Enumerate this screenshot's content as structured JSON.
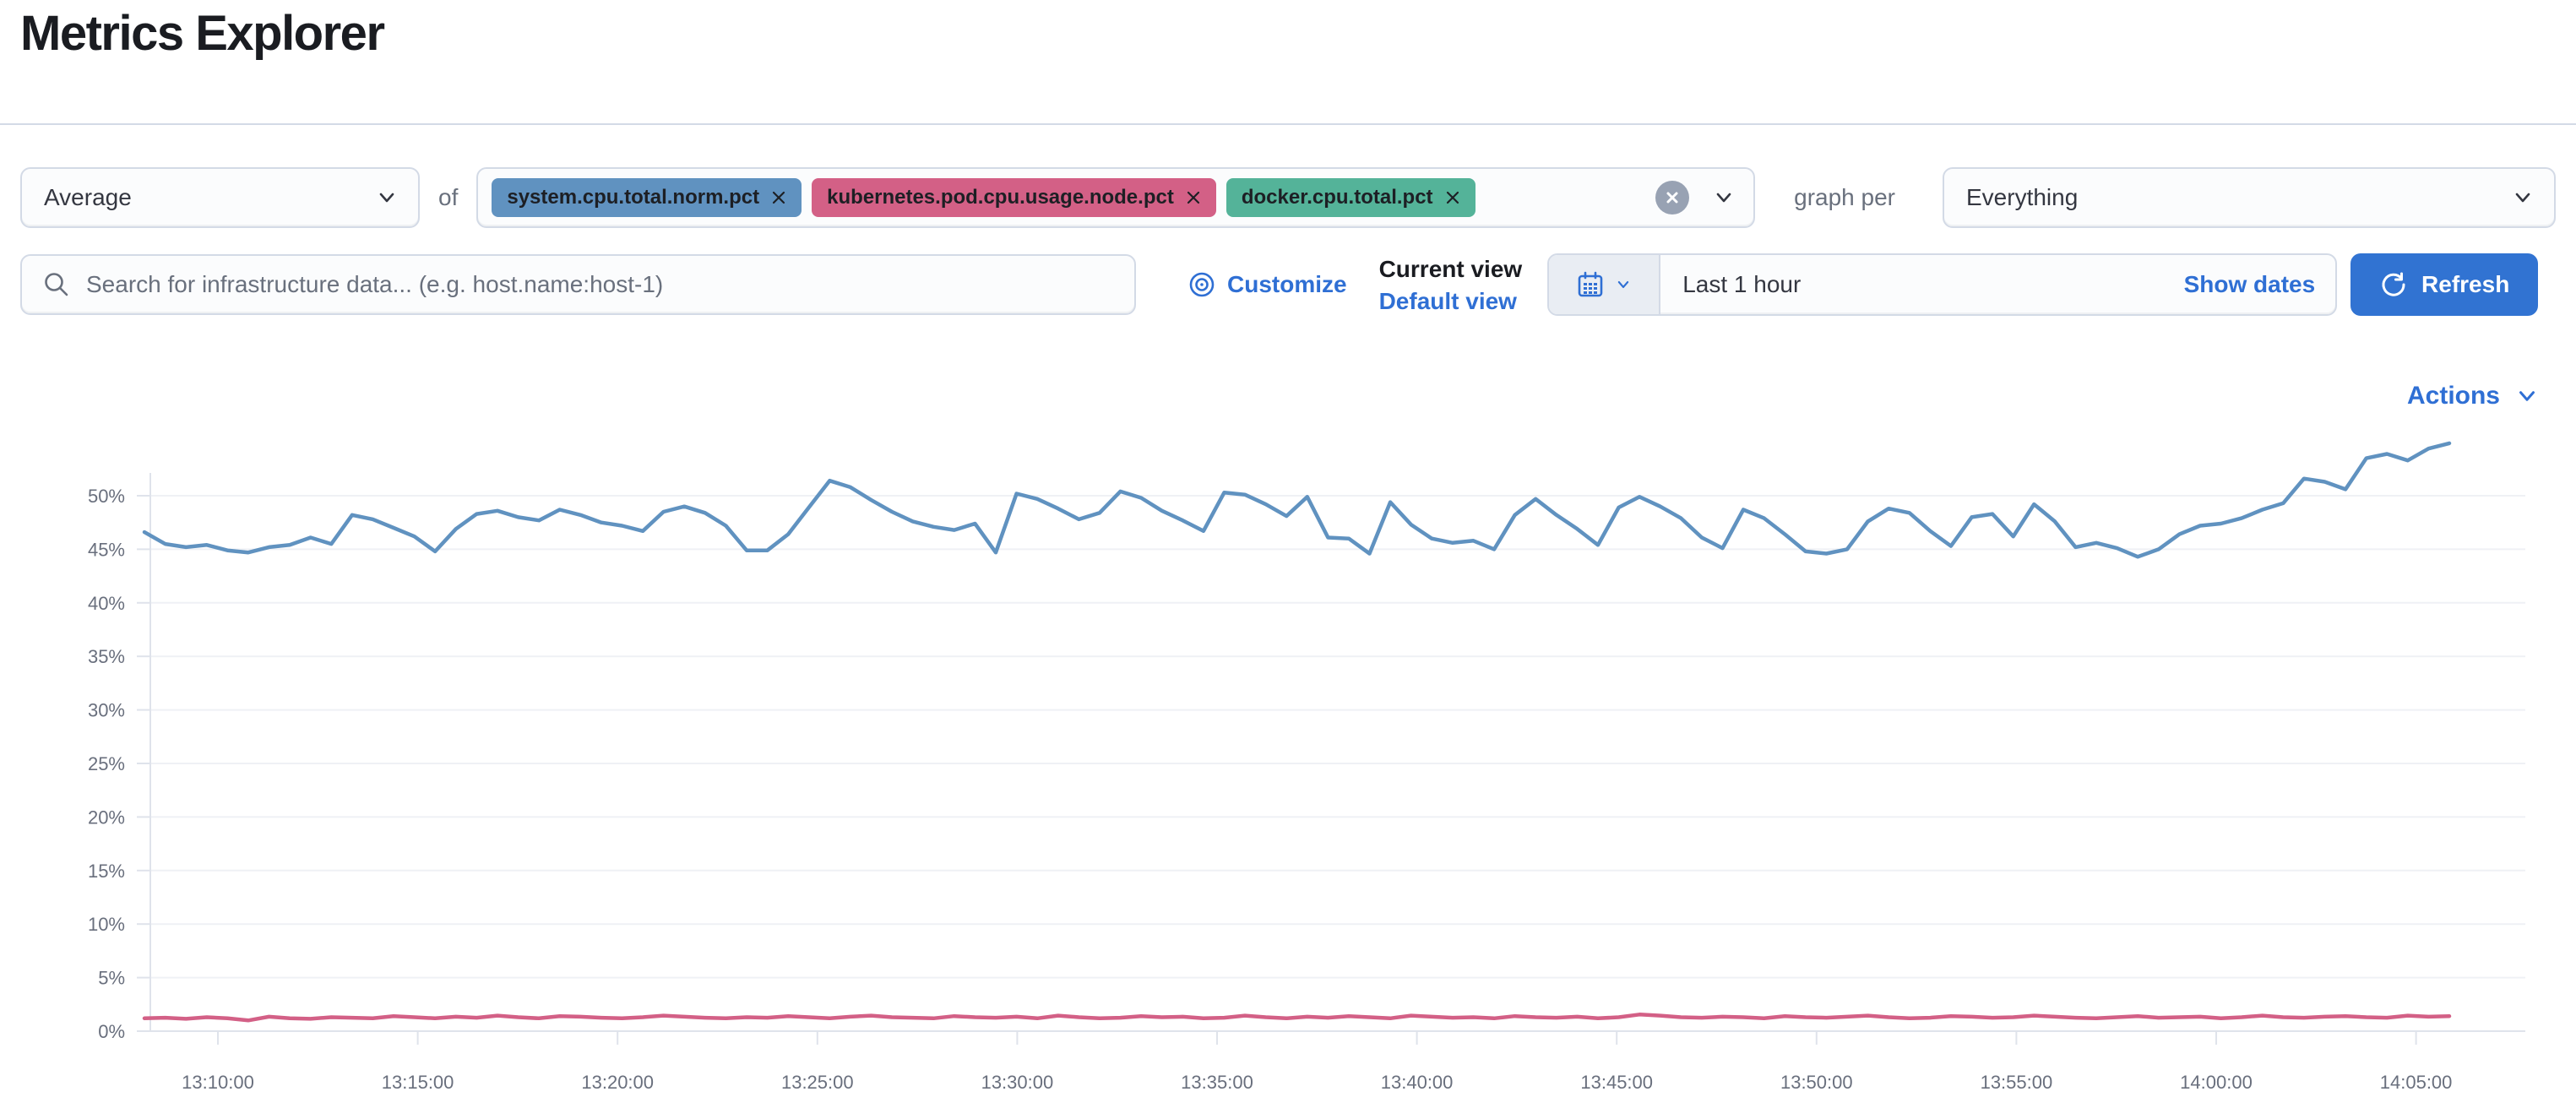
{
  "page": {
    "title": "Metrics Explorer"
  },
  "theme": {
    "title_color": "#1A1C21",
    "text_color": "#343741",
    "subdued_text_color": "#69707D",
    "link_color": "#2F6FD4",
    "primary_button_color": "#3173D2",
    "primary_button_text": "#FFFFFF",
    "border_color": "#D3DAE6",
    "divider_color": "#D3DAE6",
    "control_background": "#FBFCFD",
    "quick_select_background": "#E9EDF3",
    "clear_button_color": "#98A2B3",
    "pill_text_color": "#1D1F24",
    "axis_label_color": "#696F7D",
    "gridline_color": "#EFF1F5",
    "axis_line_color": "#DFE3EB"
  },
  "icons": {
    "aggregation_chevron": "chevron-down",
    "metrics_clear": "cross-in-circle",
    "metrics_chevron": "chevron-down",
    "group_by_chevron": "chevron-down",
    "search": "magnifier",
    "customize": "bullseye",
    "quick_select": "calendar",
    "quick_select_chevron": "chevron-down",
    "refresh": "refresh-arrow",
    "actions_chevron": "chevron-down",
    "metric_remove": "cross"
  },
  "toolbar": {
    "aggregation": {
      "value": "Average"
    },
    "of_label": "of",
    "metrics": [
      {
        "label": "system.cpu.total.norm.pct",
        "color": "#6092C0"
      },
      {
        "label": "kubernetes.pod.cpu.usage.node.pct",
        "color": "#D36086"
      },
      {
        "label": "docker.cpu.total.pct",
        "color": "#54B399"
      }
    ],
    "graph_per_label": "graph per",
    "group_by": {
      "value": "Everything"
    }
  },
  "search": {
    "placeholder": "Search for infrastructure data... (e.g. host.name:host-1)"
  },
  "view_controls": {
    "customize_label": "Customize",
    "current_view_label": "Current view",
    "view_name": "Default view"
  },
  "time_picker": {
    "value": "Last 1 hour",
    "show_dates_label": "Show dates",
    "refresh_label": "Refresh"
  },
  "actions": {
    "label": "Actions"
  },
  "chart_data": {
    "type": "line",
    "title": "",
    "xlabel": "",
    "ylabel": "",
    "unit": "%",
    "ylim": [
      0,
      55
    ],
    "grid": true,
    "legend_position": "none",
    "y_axis": {
      "ticks": [
        0,
        5,
        10,
        15,
        20,
        25,
        30,
        35,
        40,
        45,
        50
      ],
      "unit": "%"
    },
    "x_axis": {
      "labels": [
        "13:10:00",
        "13:15:00",
        "13:20:00",
        "13:25:00",
        "13:30:00",
        "13:35:00",
        "13:40:00",
        "13:45:00",
        "13:50:00",
        "13:55:00",
        "14:00:00",
        "14:05:00"
      ]
    },
    "series": [
      {
        "name": "system.cpu.total.norm.pct (Average)",
        "color": "#6092C0",
        "values": [
          46.6,
          45.5,
          45.2,
          45.4,
          44.9,
          44.7,
          45.2,
          45.4,
          46.1,
          45.5,
          48.2,
          47.8,
          47.0,
          46.2,
          44.8,
          46.9,
          48.3,
          48.6,
          48.0,
          47.7,
          48.7,
          48.2,
          47.5,
          47.2,
          46.7,
          48.5,
          49.0,
          48.4,
          47.2,
          44.9,
          44.9,
          46.4,
          48.9,
          51.4,
          50.8,
          49.6,
          48.5,
          47.6,
          47.1,
          46.8,
          47.4,
          44.7,
          50.2,
          49.7,
          48.8,
          47.8,
          48.4,
          50.4,
          49.8,
          48.6,
          47.7,
          46.7,
          50.3,
          50.1,
          49.2,
          48.1,
          49.9,
          46.1,
          46.0,
          44.6,
          49.4,
          47.3,
          46.0,
          45.6,
          45.8,
          45.0,
          48.2,
          49.7,
          48.2,
          46.9,
          45.4,
          48.9,
          49.9,
          49.0,
          47.9,
          46.1,
          45.1,
          48.7,
          47.9,
          46.4,
          44.8,
          44.6,
          45.0,
          47.6,
          48.8,
          48.4,
          46.7,
          45.3,
          48.0,
          48.3,
          46.2,
          49.2,
          47.6,
          45.2,
          45.6,
          45.1,
          44.3,
          45.0,
          46.4,
          47.2,
          47.4,
          47.9,
          48.7,
          49.3,
          51.6,
          51.3,
          50.6,
          53.5,
          53.9,
          53.3,
          54.4,
          54.9
        ]
      },
      {
        "name": "kubernetes.pod.cpu.usage.node.pct (Average)",
        "color": "#D36086",
        "values": [
          1.2,
          1.25,
          1.15,
          1.3,
          1.2,
          1.0,
          1.35,
          1.2,
          1.15,
          1.3,
          1.25,
          1.2,
          1.4,
          1.3,
          1.2,
          1.35,
          1.25,
          1.45,
          1.3,
          1.2,
          1.4,
          1.35,
          1.25,
          1.2,
          1.3,
          1.45,
          1.35,
          1.25,
          1.2,
          1.3,
          1.25,
          1.4,
          1.3,
          1.2,
          1.35,
          1.45,
          1.3,
          1.25,
          1.2,
          1.4,
          1.3,
          1.25,
          1.35,
          1.2,
          1.45,
          1.3,
          1.2,
          1.25,
          1.4,
          1.3,
          1.35,
          1.2,
          1.25,
          1.45,
          1.3,
          1.2,
          1.35,
          1.25,
          1.4,
          1.3,
          1.2,
          1.45,
          1.35,
          1.25,
          1.3,
          1.2,
          1.4,
          1.3,
          1.25,
          1.35,
          1.2,
          1.3,
          1.55,
          1.45,
          1.3,
          1.25,
          1.35,
          1.3,
          1.2,
          1.4,
          1.3,
          1.25,
          1.35,
          1.45,
          1.3,
          1.2,
          1.25,
          1.4,
          1.35,
          1.25,
          1.3,
          1.45,
          1.35,
          1.25,
          1.2,
          1.3,
          1.4,
          1.25,
          1.3,
          1.35,
          1.2,
          1.3,
          1.45,
          1.3,
          1.25,
          1.35,
          1.4,
          1.3,
          1.25,
          1.45,
          1.35,
          1.4
        ]
      }
    ]
  }
}
